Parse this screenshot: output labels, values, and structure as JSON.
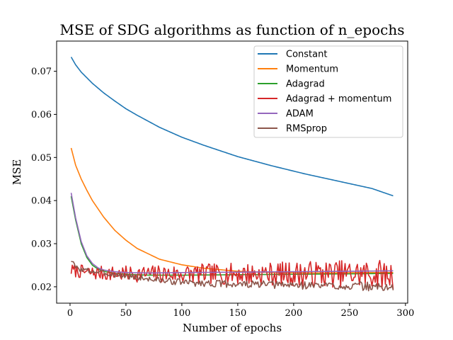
{
  "chart_data": {
    "type": "line",
    "title": "MSE of SDG algorithms as function of n_epochs",
    "xlabel": "Number of epochs",
    "ylabel": "MSE",
    "xlim": [
      -12,
      302
    ],
    "ylim": [
      0.0162,
      0.077
    ],
    "xticks": [
      0,
      50,
      100,
      150,
      200,
      250,
      300
    ],
    "yticks": [
      0.02,
      0.03,
      0.04,
      0.05,
      0.06,
      0.07
    ],
    "xtick_labels": [
      "0",
      "50",
      "100",
      "150",
      "200",
      "250",
      "300"
    ],
    "ytick_labels": [
      "0.02",
      "0.03",
      "0.04",
      "0.05",
      "0.06",
      "0.07"
    ],
    "grid": false,
    "legend_position": "top-right",
    "x_range": [
      1,
      289
    ],
    "series": [
      {
        "name": "Constant",
        "color": "#1f77b4",
        "points": [
          [
            1,
            0.0733
          ],
          [
            5,
            0.0715
          ],
          [
            10,
            0.0698
          ],
          [
            20,
            0.0672
          ],
          [
            30,
            0.065
          ],
          [
            40,
            0.0631
          ],
          [
            50,
            0.0613
          ],
          [
            60,
            0.0598
          ],
          [
            80,
            0.057
          ],
          [
            100,
            0.0547
          ],
          [
            120,
            0.0528
          ],
          [
            150,
            0.0502
          ],
          [
            180,
            0.0481
          ],
          [
            210,
            0.0462
          ],
          [
            240,
            0.0445
          ],
          [
            270,
            0.0428
          ],
          [
            289,
            0.0411
          ]
        ]
      },
      {
        "name": "Momentum",
        "color": "#ff7f0e",
        "points": [
          [
            1,
            0.0522
          ],
          [
            5,
            0.0482
          ],
          [
            10,
            0.045
          ],
          [
            15,
            0.0424
          ],
          [
            20,
            0.04
          ],
          [
            30,
            0.0362
          ],
          [
            40,
            0.0331
          ],
          [
            50,
            0.0308
          ],
          [
            60,
            0.0289
          ],
          [
            80,
            0.0264
          ],
          [
            100,
            0.0251
          ],
          [
            120,
            0.0243
          ],
          [
            150,
            0.0236
          ],
          [
            180,
            0.0233
          ],
          [
            220,
            0.0232
          ],
          [
            260,
            0.0233
          ],
          [
            289,
            0.0233
          ]
        ]
      },
      {
        "name": "Adagrad",
        "color": "#2ca02c",
        "points": [
          [
            1,
            0.041
          ],
          [
            5,
            0.0355
          ],
          [
            10,
            0.03
          ],
          [
            15,
            0.0268
          ],
          [
            20,
            0.025
          ],
          [
            25,
            0.0241
          ],
          [
            30,
            0.0236
          ],
          [
            40,
            0.0231
          ],
          [
            50,
            0.0229
          ],
          [
            70,
            0.0227
          ],
          [
            100,
            0.0227
          ],
          [
            150,
            0.0228
          ],
          [
            200,
            0.0229
          ],
          [
            250,
            0.023
          ],
          [
            289,
            0.0231
          ]
        ]
      },
      {
        "name": "Adagrad + momentum",
        "color": "#d62728",
        "noise": {
          "seed": 7,
          "amp_start": 0.0015,
          "amp_end": 0.0035
        },
        "points": [
          [
            1,
            0.0238
          ],
          [
            20,
            0.0232
          ],
          [
            50,
            0.023
          ],
          [
            100,
            0.023
          ],
          [
            150,
            0.023
          ],
          [
            200,
            0.023
          ],
          [
            250,
            0.023
          ],
          [
            289,
            0.0228
          ]
        ]
      },
      {
        "name": "ADAM",
        "color": "#9467bd",
        "points": [
          [
            1,
            0.0418
          ],
          [
            5,
            0.036
          ],
          [
            10,
            0.0305
          ],
          [
            15,
            0.0272
          ],
          [
            20,
            0.0254
          ],
          [
            25,
            0.0244
          ],
          [
            30,
            0.0239
          ],
          [
            40,
            0.0235
          ],
          [
            50,
            0.0233
          ],
          [
            70,
            0.0232
          ],
          [
            100,
            0.0233
          ],
          [
            150,
            0.0234
          ],
          [
            200,
            0.0235
          ],
          [
            250,
            0.0236
          ],
          [
            289,
            0.0237
          ]
        ]
      },
      {
        "name": "RMSprop",
        "color": "#8c564b",
        "noise": {
          "seed": 3,
          "amp_start": 0.0006,
          "amp_end": 0.0011
        },
        "points": [
          [
            1,
            0.0262
          ],
          [
            5,
            0.0245
          ],
          [
            10,
            0.024
          ],
          [
            30,
            0.0232
          ],
          [
            50,
            0.0225
          ],
          [
            80,
            0.0215
          ],
          [
            110,
            0.0209
          ],
          [
            150,
            0.0206
          ],
          [
            200,
            0.0204
          ],
          [
            250,
            0.0202
          ],
          [
            289,
            0.0198
          ]
        ]
      }
    ]
  }
}
